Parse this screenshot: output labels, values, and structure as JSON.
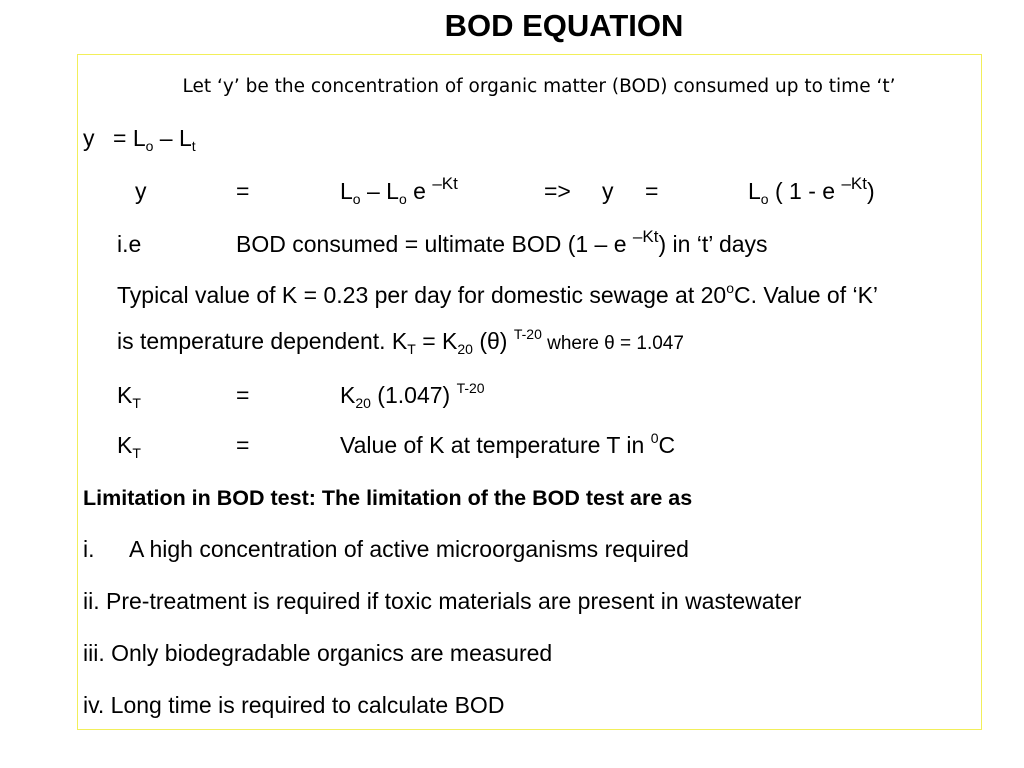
{
  "title": "BOD EQUATION",
  "intro": "Let ‘y’ be the concentration of organic matter (BOD) consumed up to time ‘t’",
  "eq1": {
    "lhs": "y",
    "rhs_prefix": "= L",
    "sub_o": "o",
    "minus": " – L",
    "sub_t": "t"
  },
  "eq2": {
    "lhs": "y",
    "eq": "=",
    "L": "L",
    "sub_o": "o",
    "mid": " – L",
    "sub_o2": "o",
    "e": " e ",
    "exp": "–Kt",
    "arrow": "=>",
    "lhs2": "y",
    "eq2": "=",
    "L2": "L",
    "sub_o3": "o",
    "paren": " ( 1 - e ",
    "exp2": "–Kt",
    "close": ")"
  },
  "eq3": {
    "label": "i.e",
    "text_a": "BOD consumed = ultimate BOD (1 – e ",
    "exp": "–Kt",
    "text_b": ") in ‘t’ days"
  },
  "typical": {
    "line1_a": "Typical value of K = 0.23 per day for domestic sewage at 20",
    "line1_sup": "o",
    "line1_b": "C. Value of ‘K’",
    "line2_a": "is temperature dependent. K",
    "line2_sub": "T",
    "line2_b": " = K",
    "line2_sub2": "20",
    "line2_c": " (θ) ",
    "line2_sup": "T-20",
    "line2_d": "  where θ = 1.047"
  },
  "kt1": {
    "K": "K",
    "sub": "T",
    "eq": "=",
    "rhs_a": "K",
    "rhs_sub": "20",
    "rhs_b": " (1.047) ",
    "rhs_sup": "T-20"
  },
  "kt2": {
    "K": "K",
    "sub": "T",
    "eq": "=",
    "rhs_a": "Value of K at temperature T in ",
    "rhs_sup": "0",
    "rhs_b": "C"
  },
  "limitation_heading": "Limitation in BOD test: The limitation of the BOD test are as",
  "limitations": [
    {
      "marker": "i.",
      "text": "A high concentration of active microorganisms required"
    },
    {
      "marker": "",
      "text": "ii. Pre-treatment is required if toxic materials are present in wastewater"
    },
    {
      "marker": "",
      "text": "iii. Only biodegradable organics are measured"
    },
    {
      "marker": "",
      "text": "iv. Long time is required to calculate BOD"
    }
  ],
  "colors": {
    "frame_border": "#f2ef5a",
    "text": "#000000",
    "background": "#ffffff"
  }
}
